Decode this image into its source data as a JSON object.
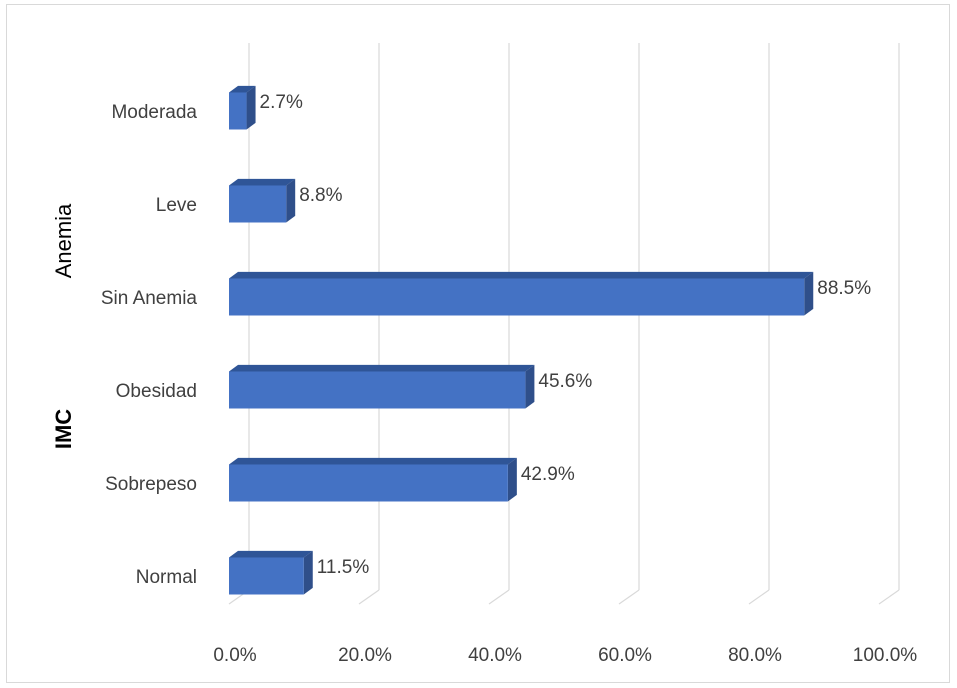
{
  "colors": {
    "bar_front": "#4472c4",
    "bar_top": "#2f5597",
    "bar_side": "#2f4f8a",
    "grid": "#d9d9d9",
    "text": "#404040"
  },
  "chart_data": {
    "type": "bar",
    "orientation": "horizontal",
    "style": "3d",
    "categories": [
      "Normal",
      "Sobrepeso",
      "Obesidad",
      "Sin Anemia",
      "Leve",
      "Moderada"
    ],
    "values": [
      11.5,
      42.9,
      45.6,
      88.5,
      8.8,
      2.7
    ],
    "data_labels": [
      "11.5%",
      "42.9%",
      "45.6%",
      "88.5%",
      "8.8%",
      "2.7%"
    ],
    "groups": [
      {
        "name": "IMC",
        "categories": [
          "Normal",
          "Sobrepeso",
          "Obesidad"
        ]
      },
      {
        "name": "Anemia",
        "categories": [
          "Sin Anemia",
          "Leve",
          "Moderada"
        ]
      }
    ],
    "xlim": [
      0,
      100
    ],
    "x_ticks": [
      "0.0%",
      "20.0%",
      "40.0%",
      "60.0%",
      "80.0%",
      "100.0%"
    ],
    "grid": true,
    "title": "",
    "xlabel": "",
    "ylabel": ""
  }
}
